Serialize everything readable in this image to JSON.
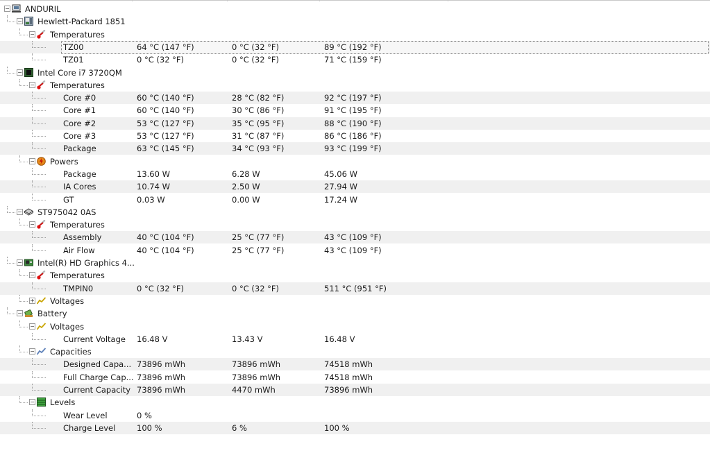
{
  "rows": [
    {
      "label": "ANDURIL",
      "level": 0,
      "type": "node",
      "expanded": true,
      "icon": "computer-icon"
    },
    {
      "label": "Hewlett-Packard 1851",
      "level": 1,
      "type": "node",
      "expanded": true,
      "icon": "motherboard-icon"
    },
    {
      "label": "Temperatures",
      "level": 2,
      "type": "node",
      "expanded": true,
      "icon": "thermometer-icon"
    },
    {
      "label": "TZ00",
      "level": 3,
      "type": "leaf",
      "value": "64 °C  (147 °F)",
      "min": "0 °C  (32 °F)",
      "max": "89 °C  (192 °F)",
      "selected": true
    },
    {
      "label": "TZ01",
      "level": 3,
      "type": "leaf",
      "value": "0 °C  (32 °F)",
      "min": "0 °C  (32 °F)",
      "max": "71 °C  (159 °F)"
    },
    {
      "label": "Intel Core i7 3720QM",
      "level": 1,
      "type": "node",
      "expanded": true,
      "icon": "cpu-icon"
    },
    {
      "label": "Temperatures",
      "level": 2,
      "type": "node",
      "expanded": true,
      "icon": "thermometer-icon"
    },
    {
      "label": "Core #0",
      "level": 3,
      "type": "leaf",
      "value": "60 °C  (140 °F)",
      "min": "28 °C  (82 °F)",
      "max": "92 °C  (197 °F)"
    },
    {
      "label": "Core #1",
      "level": 3,
      "type": "leaf",
      "value": "60 °C  (140 °F)",
      "min": "30 °C  (86 °F)",
      "max": "91 °C  (195 °F)"
    },
    {
      "label": "Core #2",
      "level": 3,
      "type": "leaf",
      "value": "53 °C  (127 °F)",
      "min": "35 °C  (95 °F)",
      "max": "88 °C  (190 °F)"
    },
    {
      "label": "Core #3",
      "level": 3,
      "type": "leaf",
      "value": "53 °C  (127 °F)",
      "min": "31 °C  (87 °F)",
      "max": "86 °C  (186 °F)"
    },
    {
      "label": "Package",
      "level": 3,
      "type": "leaf",
      "value": "63 °C  (145 °F)",
      "min": "34 °C  (93 °F)",
      "max": "93 °C  (199 °F)"
    },
    {
      "label": "Powers",
      "level": 2,
      "type": "node",
      "expanded": true,
      "icon": "power-icon"
    },
    {
      "label": "Package",
      "level": 3,
      "type": "leaf",
      "value": "13.60 W",
      "min": "6.28 W",
      "max": "45.06 W"
    },
    {
      "label": "IA Cores",
      "level": 3,
      "type": "leaf",
      "value": "10.74 W",
      "min": "2.50 W",
      "max": "27.94 W"
    },
    {
      "label": "GT",
      "level": 3,
      "type": "leaf",
      "value": "0.03 W",
      "min": "0.00 W",
      "max": "17.24 W"
    },
    {
      "label": "ST975042 0AS",
      "level": 1,
      "type": "node",
      "expanded": true,
      "icon": "hard-disk-icon"
    },
    {
      "label": "Temperatures",
      "level": 2,
      "type": "node",
      "expanded": true,
      "icon": "thermometer-icon"
    },
    {
      "label": "Assembly",
      "level": 3,
      "type": "leaf",
      "value": "40 °C  (104 °F)",
      "min": "25 °C  (77 °F)",
      "max": "43 °C  (109 °F)"
    },
    {
      "label": "Air Flow",
      "level": 3,
      "type": "leaf",
      "value": "40 °C  (104 °F)",
      "min": "25 °C  (77 °F)",
      "max": "43 °C  (109 °F)"
    },
    {
      "label": "Intel(R) HD Graphics 4...",
      "level": 1,
      "type": "node",
      "expanded": true,
      "icon": "graphics-card-icon"
    },
    {
      "label": "Temperatures",
      "level": 2,
      "type": "node",
      "expanded": true,
      "icon": "thermometer-icon"
    },
    {
      "label": "TMPIN0",
      "level": 3,
      "type": "leaf",
      "value": "0 °C  (32 °F)",
      "min": "0 °C  (32 °F)",
      "max": "511 °C  (951 °F)"
    },
    {
      "label": "Voltages",
      "level": 2,
      "type": "node",
      "expanded": false,
      "icon": "voltage-icon"
    },
    {
      "label": "Battery",
      "level": 0.5,
      "type": "node",
      "expanded": true,
      "icon": "battery-icon"
    },
    {
      "label": "Voltages",
      "level": 2,
      "type": "node",
      "expanded": true,
      "icon": "voltage-icon"
    },
    {
      "label": "Current Voltage",
      "level": 3,
      "type": "leaf",
      "value": "16.48 V",
      "min": "13.43 V",
      "max": "16.48 V"
    },
    {
      "label": "Capacities",
      "level": 2,
      "type": "node",
      "expanded": true,
      "icon": "capacity-icon"
    },
    {
      "label": "Designed Capa...",
      "level": 3,
      "type": "leaf",
      "value": "73896 mWh",
      "min": "73896 mWh",
      "max": "74518 mWh"
    },
    {
      "label": "Full Charge Cap...",
      "level": 3,
      "type": "leaf",
      "value": "73896 mWh",
      "min": "73896 mWh",
      "max": "74518 mWh"
    },
    {
      "label": "Current Capacity",
      "level": 3,
      "type": "leaf",
      "value": "73896 mWh",
      "min": "4470 mWh",
      "max": "73896 mWh"
    },
    {
      "label": "Levels",
      "level": 2,
      "type": "node",
      "expanded": true,
      "icon": "levels-icon"
    },
    {
      "label": "Wear Level",
      "level": 3,
      "type": "leaf",
      "value": "0 %",
      "min": "",
      "max": ""
    },
    {
      "label": "Charge Level",
      "level": 3,
      "type": "leaf",
      "value": "100 %",
      "min": "6 %",
      "max": "100 %"
    }
  ]
}
